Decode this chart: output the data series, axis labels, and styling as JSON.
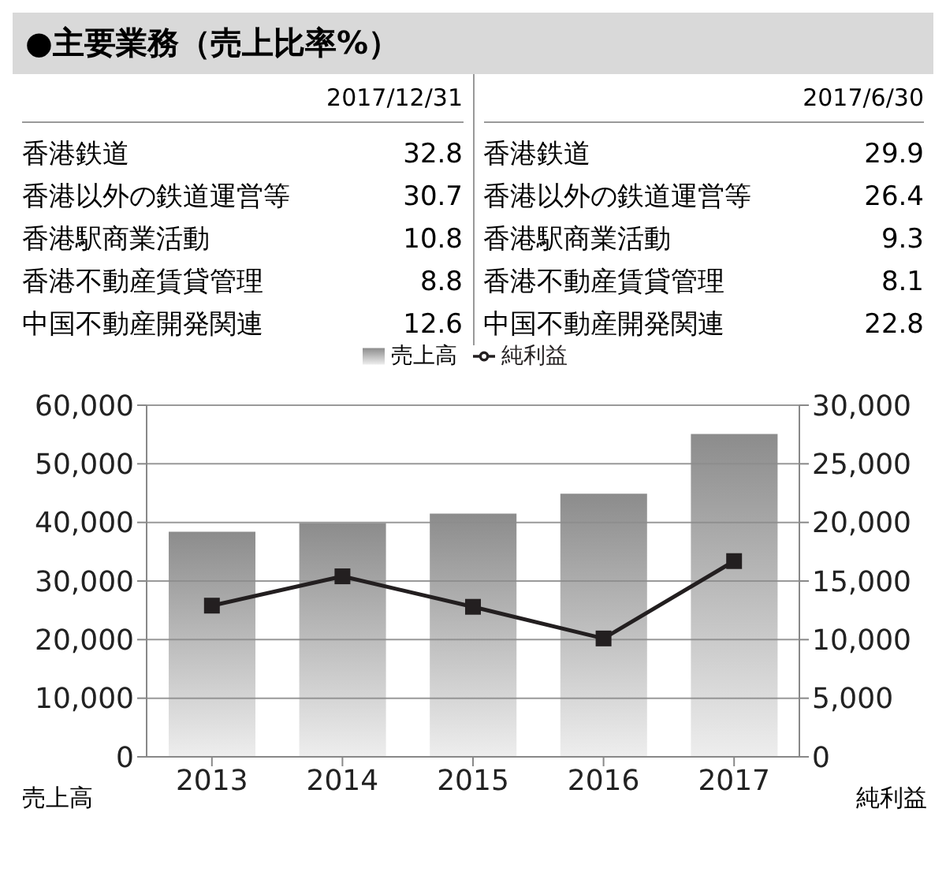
{
  "chart_data": [
    {
      "type": "other",
      "title": "●主要業務（売上比率%）",
      "categories": [
        "香港鉄道",
        "香港以外の鉄道運営等",
        "香港駅商業活動",
        "香港不動産賃貸管理",
        "中国不動産開発関連"
      ],
      "series": [
        {
          "name": "2017/12/31",
          "values": [
            32.8,
            30.7,
            10.8,
            8.8,
            12.6
          ]
        },
        {
          "name": "2017/6/30",
          "values": [
            29.9,
            26.4,
            9.3,
            8.1,
            22.8
          ]
        }
      ],
      "data_labels": true
    },
    {
      "type": "bar",
      "categories": [
        "2013",
        "2014",
        "2015",
        "2016",
        "2017"
      ],
      "series": [
        {
          "name": "売上高",
          "type": "bar",
          "color": "#8c8c8c",
          "values": [
            38400,
            39900,
            41500,
            44900,
            55100
          ]
        },
        {
          "name": "純利益",
          "type": "line",
          "axis": "y2",
          "color": "#231f20",
          "values": [
            12900,
            15400,
            12800,
            10100,
            16700
          ]
        }
      ],
      "ylim": [
        0,
        60000
      ],
      "yticks": [
        0,
        {
          "value": 10000,
          "label": "10,000"
        },
        {
          "value": 20000,
          "label": "20,000"
        },
        {
          "value": 30000,
          "label": "30,000"
        },
        {
          "value": 40000,
          "label": "40,000"
        },
        {
          "value": 50000,
          "label": "50,000"
        },
        {
          "value": 60000,
          "label": "60,000"
        }
      ],
      "y2lim": [
        0,
        30000
      ],
      "y2ticks": [
        0,
        {
          "value": 5000,
          "label": "5,000"
        },
        {
          "value": 10000,
          "label": "10,000"
        },
        {
          "value": 15000,
          "label": "15,000"
        },
        {
          "value": 20000,
          "label": "20,000"
        },
        {
          "value": 25000,
          "label": "25,000"
        },
        {
          "value": 30000,
          "label": "30,000"
        }
      ],
      "ylabel": "売上高",
      "y2label": "純利益",
      "grid": "y",
      "legend": "top",
      "marker": "square"
    }
  ]
}
